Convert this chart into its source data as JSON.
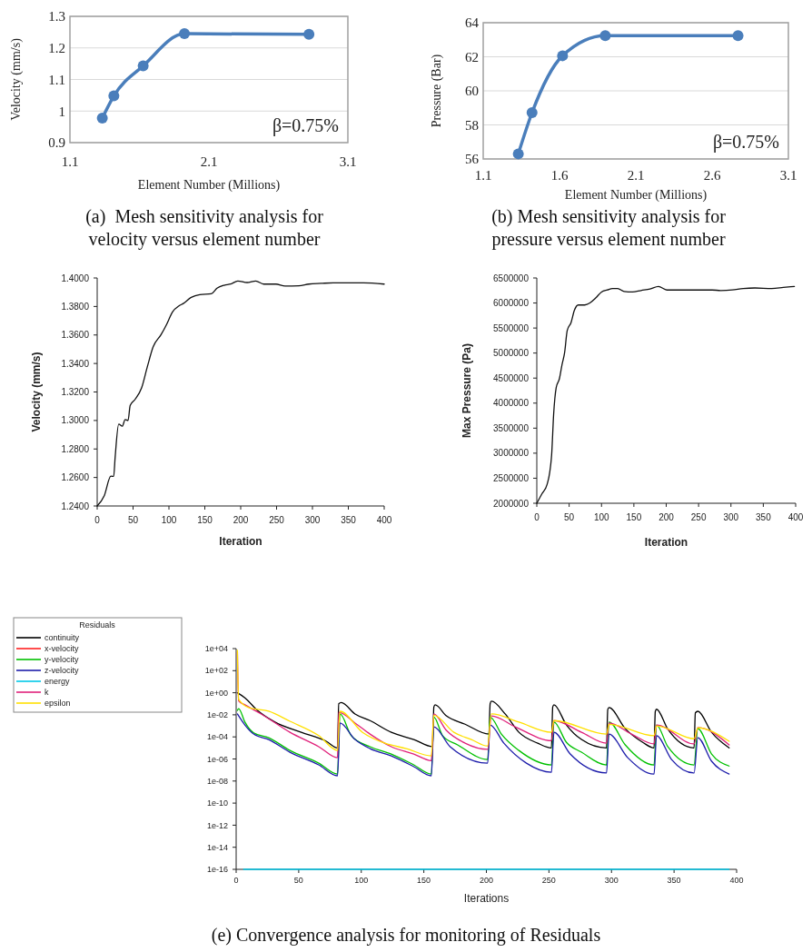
{
  "chart_data": [
    {
      "type": "line",
      "title": "(a)  Mesh sensitivity analysis for velocity versus element number",
      "xlabel": "Element Number (Millions)",
      "ylabel": "Velocity (mm/s)",
      "annotations": [
        "β=0.75%"
      ],
      "x": [
        1.333,
        1.416,
        1.627,
        1.924,
        2.82
      ],
      "values": [
        0.978,
        1.048,
        1.143,
        1.245,
        1.243
      ],
      "color": "#4a7ebb",
      "xlim": [
        1.1,
        3.1
      ],
      "xticks": [
        1.1,
        2.1,
        3.1
      ],
      "ylim": [
        0.9,
        1.3
      ],
      "yticks": [
        0.9,
        1,
        1.1,
        1.2,
        1.3
      ],
      "grid": "y",
      "marker": "circle"
    },
    {
      "type": "line",
      "title": "(b) Mesh sensitivity analysis for pressure versus element number",
      "xlabel": "Element Number (Millions)",
      "ylabel": "Pressure  (Bar)",
      "annotations": [
        "β=0.75%"
      ],
      "x": [
        1.33,
        1.42,
        1.62,
        1.9,
        2.77
      ],
      "values": [
        56.3,
        58.72,
        62.06,
        63.24,
        63.24
      ],
      "color": "#4a7ebb",
      "xlim": [
        1.1,
        3.1
      ],
      "xticks": [
        1.1,
        1.6,
        2.1,
        2.6,
        3.1
      ],
      "ylim": [
        56,
        64
      ],
      "yticks": [
        56,
        58,
        60,
        62,
        64
      ],
      "grid": "y",
      "marker": "circle"
    },
    {
      "type": "line",
      "xlabel": "Iteration",
      "ylabel": "Velocity (mm/s)",
      "x": [
        0,
        10,
        19,
        23,
        25,
        30,
        35,
        39,
        43,
        46,
        53,
        62,
        70,
        78,
        89,
        97,
        105,
        114,
        120,
        131,
        143,
        159,
        167,
        177,
        186,
        196,
        209,
        221,
        232,
        249,
        262,
        281,
        295,
        312,
        329,
        371,
        400
      ],
      "values": [
        1.24,
        1.2474,
        1.2609,
        1.2608,
        1.274,
        1.2974,
        1.296,
        1.3007,
        1.3,
        1.3106,
        1.3149,
        1.323,
        1.3379,
        1.3517,
        1.3602,
        1.3677,
        1.3762,
        1.3804,
        1.3821,
        1.3864,
        1.3883,
        1.3889,
        1.3928,
        1.3949,
        1.3957,
        1.3979,
        1.3968,
        1.3979,
        1.3957,
        1.3957,
        1.3943,
        1.3945,
        1.3957,
        1.3962,
        1.3966,
        1.3966,
        1.3957
      ],
      "color": "#111111",
      "xlim": [
        0,
        400
      ],
      "xticks": [
        0,
        50,
        100,
        150,
        200,
        250,
        300,
        350,
        400
      ],
      "ylim": [
        1.24,
        1.4
      ],
      "yticks": [
        {
          "value": 1.24,
          "label": "1.2400"
        },
        {
          "value": 1.26,
          "label": "1.2600"
        },
        {
          "value": 1.28,
          "label": "1.2800"
        },
        {
          "value": 1.3,
          "label": "1.3000"
        },
        {
          "value": 1.32,
          "label": "1.3200"
        },
        {
          "value": 1.34,
          "label": "1.3400"
        },
        {
          "value": 1.36,
          "label": "1.3600"
        },
        {
          "value": 1.38,
          "label": "1.3800"
        },
        {
          "value": 1.4,
          "label": "1.4000"
        }
      ]
    },
    {
      "type": "line",
      "xlabel": "Iteration",
      "ylabel": "Max Pressure (Pa)",
      "x": [
        0,
        8,
        16,
        20,
        23,
        26,
        30,
        35,
        39,
        43,
        47,
        53,
        58,
        64,
        74,
        82,
        91,
        100,
        109,
        117,
        125,
        135,
        148,
        161,
        175,
        188,
        201,
        223,
        249,
        271,
        284,
        302,
        319,
        337,
        363,
        381,
        398
      ],
      "values": [
        2000000,
        2190000,
        2380000,
        2620000,
        2980000,
        3770000,
        4310000,
        4490000,
        4770000,
        5010000,
        5450000,
        5610000,
        5850000,
        5960000,
        5960000,
        6000000,
        6100000,
        6220000,
        6260000,
        6290000,
        6290000,
        6230000,
        6220000,
        6250000,
        6280000,
        6330000,
        6260000,
        6260000,
        6260000,
        6260000,
        6250000,
        6260000,
        6290000,
        6300000,
        6290000,
        6310000,
        6330000
      ],
      "color": "#111111",
      "xlim": [
        0,
        400
      ],
      "xticks": [
        0,
        50,
        100,
        150,
        200,
        250,
        300,
        350,
        400
      ],
      "ylim": [
        2000000,
        6500000
      ],
      "yticks": [
        2000000,
        2500000,
        3000000,
        3500000,
        4000000,
        4500000,
        5000000,
        5500000,
        6000000,
        6500000
      ]
    },
    {
      "type": "line",
      "title": "(e) Convergence analysis for monitoring of Residuals",
      "xlabel": "Iterations",
      "legend_title": "Residuals",
      "legend": "left",
      "log": true,
      "xlim": [
        0,
        400
      ],
      "xticks": [
        0,
        50,
        100,
        150,
        200,
        250,
        300,
        350,
        400
      ],
      "ylim": [
        1e-16,
        10000
      ],
      "yticks": [
        {
          "value": 1e-16,
          "label": "1e-16"
        },
        {
          "value": 1e-14,
          "label": "1e-14"
        },
        {
          "value": 1e-12,
          "label": "1e-12"
        },
        {
          "value": 1e-10,
          "label": "1e-10"
        },
        {
          "value": 1e-08,
          "label": "1e-08"
        },
        {
          "value": 1e-06,
          "label": "1e-06"
        },
        {
          "value": 0.0001,
          "label": "1e-04"
        },
        {
          "value": 0.01,
          "label": "1e-02"
        },
        {
          "value": 1,
          "label": "1e+00"
        },
        {
          "value": 100,
          "label": "1e+02"
        },
        {
          "value": 10000,
          "label": "1e+04"
        }
      ],
      "series": [
        {
          "name": "continuity",
          "color": "#000000",
          "x": [
            1,
            7,
            17,
            31,
            52,
            72,
            81,
            82,
            84,
            95,
            107,
            124,
            142,
            157,
            158,
            159,
            168,
            183,
            202,
            203,
            204,
            215,
            226,
            241,
            252,
            253,
            254,
            264,
            276,
            296,
            297,
            298,
            311,
            325,
            334,
            335,
            336,
            345,
            366,
            367,
            369,
            380,
            394
          ],
          "values": [
            1,
            0.35,
            0.025,
            0.0022,
            0.00026,
            4e-05,
            1e-05,
            0.1,
            0.13,
            0.012,
            0.003,
            0.00026,
            5.8e-05,
            1.3e-05,
            0.05,
            0.08,
            0.008,
            0.0014,
            0.00018,
            0.1,
            0.17,
            0.012,
            0.00026,
            2.7e-05,
            1e-05,
            0.05,
            0.08,
            0.0012,
            5.8e-05,
            1e-05,
            0.03,
            0.046,
            0.00056,
            3.2e-05,
            1e-05,
            0.02,
            0.032,
            0.0005,
            1e-05,
            0.015,
            0.021,
            0.00026,
            1e-05
          ]
        },
        {
          "name": "x-velocity",
          "color": "#ff2020"
        },
        {
          "name": "y-velocity",
          "color": "#00c000",
          "x": [
            1,
            2,
            7,
            14,
            26,
            43,
            66,
            81,
            83,
            92,
            107,
            124,
            142,
            156,
            158,
            165,
            177,
            201,
            203,
            212,
            226,
            252,
            254,
            264,
            276,
            296,
            298,
            311,
            334,
            336,
            345,
            366,
            369,
            380,
            394
          ],
          "values": [
            0.025,
            0.036,
            0.0022,
            0.00023,
            8.5e-05,
            5.9e-06,
            4.2e-07,
            4.3e-08,
            0.012,
            0.00013,
            1.3e-05,
            2.8e-06,
            2.9e-07,
            4.3e-08,
            0.0063,
            0.00013,
            1.9e-05,
            8.9e-07,
            0.0063,
            0.00018,
            5.9e-06,
            2.9e-07,
            0.0022,
            3.2e-05,
            4.1e-06,
            2.9e-07,
            0.0022,
            1.9e-05,
            2.9e-07,
            0.0012,
            1.3e-05,
            2.9e-07,
            0.00056,
            2.8e-06,
            2.3e-07
          ]
        },
        {
          "name": "z-velocity",
          "color": "#1c1caa",
          "x": [
            1,
            7,
            14,
            26,
            43,
            66,
            81,
            83,
            95,
            107,
            124,
            142,
            156,
            158,
            171,
            201,
            203,
            214,
            232,
            252,
            254,
            267,
            296,
            298,
            313,
            334,
            336,
            348,
            366,
            369,
            380,
            394
          ],
          "values": [
            0.012,
            0.0012,
            0.00018,
            5.8e-05,
            4.1e-06,
            2.9e-07,
            3e-08,
            0.0018,
            5.8e-05,
            8.7e-06,
            1.9e-06,
            2e-07,
            3e-08,
            0.00083,
            1.3e-05,
            4.2e-07,
            0.0012,
            2.7e-05,
            4.2e-07,
            6.3e-08,
            0.00026,
            2.8e-06,
            5.4e-08,
            0.00018,
            1.3e-06,
            4.3e-08,
            0.00013,
            8.9e-07,
            5.4e-08,
            8.5e-05,
            6.2e-07,
            4.3e-08
          ]
        },
        {
          "name": "energy",
          "color": "#00c8e8",
          "x": [
            6,
            394
          ],
          "values": [
            1e-16,
            1e-16
          ]
        },
        {
          "name": "k",
          "color": "#e0207a",
          "x": [
            1,
            2,
            7,
            20,
            43,
            66,
            81,
            82,
            95,
            107,
            124,
            142,
            156,
            158,
            168,
            183,
            201,
            204,
            223,
            252,
            254,
            276,
            296,
            298,
            316,
            334,
            336,
            366,
            369,
            394
          ],
          "values": [
            4700,
            0.18,
            0.08,
            0.012,
            0.00026,
            1.3e-05,
            1.3e-06,
            0.017,
            0.0018,
            0.00018,
            1.3e-05,
            2.8e-06,
            7e-07,
            0.012,
            0.00039,
            2.7e-05,
            7.4e-06,
            0.008,
            0.00083,
            4.6e-05,
            0.003,
            0.00026,
            2.7e-05,
            0.0018,
            0.00018,
            2.3e-05,
            0.0012,
            2.3e-05,
            0.0007,
            1.9e-05
          ]
        },
        {
          "name": "epsilon",
          "color": "#ffe000",
          "x": [
            1,
            2,
            10,
            26,
            43,
            66,
            81,
            83,
            101,
            119,
            136,
            156,
            158,
            174,
            188,
            201,
            204,
            226,
            252,
            254,
            296,
            298,
            334,
            336,
            366,
            369,
            394
          ],
          "values": [
            7000,
            0.25,
            0.046,
            0.021,
            0.0026,
            0.00013,
            6e-06,
            0.021,
            0.00026,
            2.7e-05,
            8.7e-06,
            1.9e-06,
            0.0093,
            0.00026,
            5.8e-05,
            1.5e-05,
            0.012,
            0.0022,
            0.00026,
            0.003,
            0.00018,
            0.0014,
            0.00013,
            0.001,
            6.8e-05,
            0.00066,
            4e-05
          ]
        }
      ]
    }
  ]
}
